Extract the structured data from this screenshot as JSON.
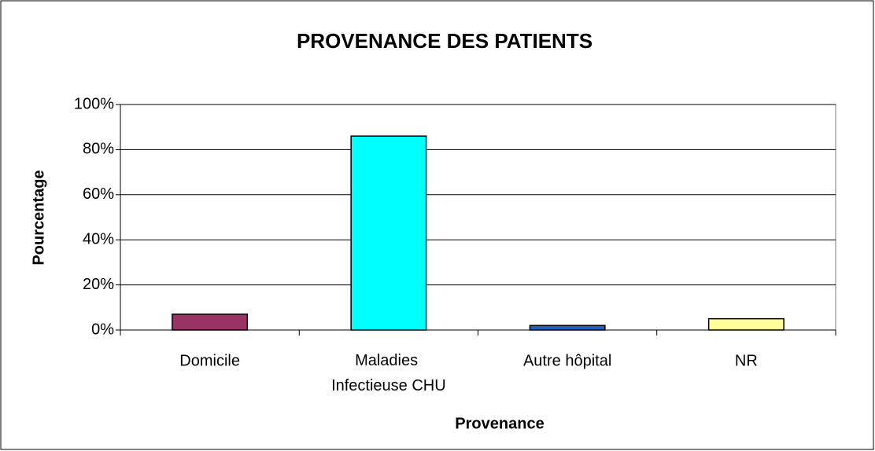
{
  "chart_data": {
    "type": "bar",
    "title": "PROVENANCE DES PATIENTS",
    "x_label": "Provenance",
    "y_label": "Pourcentage",
    "categories": [
      "Domicile",
      "Maladies Infectieuse CHU",
      "Autre hôpital",
      "NR"
    ],
    "values": [
      7,
      86,
      2,
      5
    ],
    "colors": [
      "#993366",
      "#00ffff",
      "#1f5fc0",
      "#ffff99"
    ],
    "ylim": [
      0,
      100
    ],
    "yticks": [
      {
        "value": 0,
        "label": "0%"
      },
      {
        "value": 20,
        "label": "20%"
      },
      {
        "value": 40,
        "label": "40%"
      },
      {
        "value": 60,
        "label": "60%"
      },
      {
        "value": 80,
        "label": "80%"
      },
      {
        "value": 100,
        "label": "100%"
      }
    ],
    "grid": true
  }
}
